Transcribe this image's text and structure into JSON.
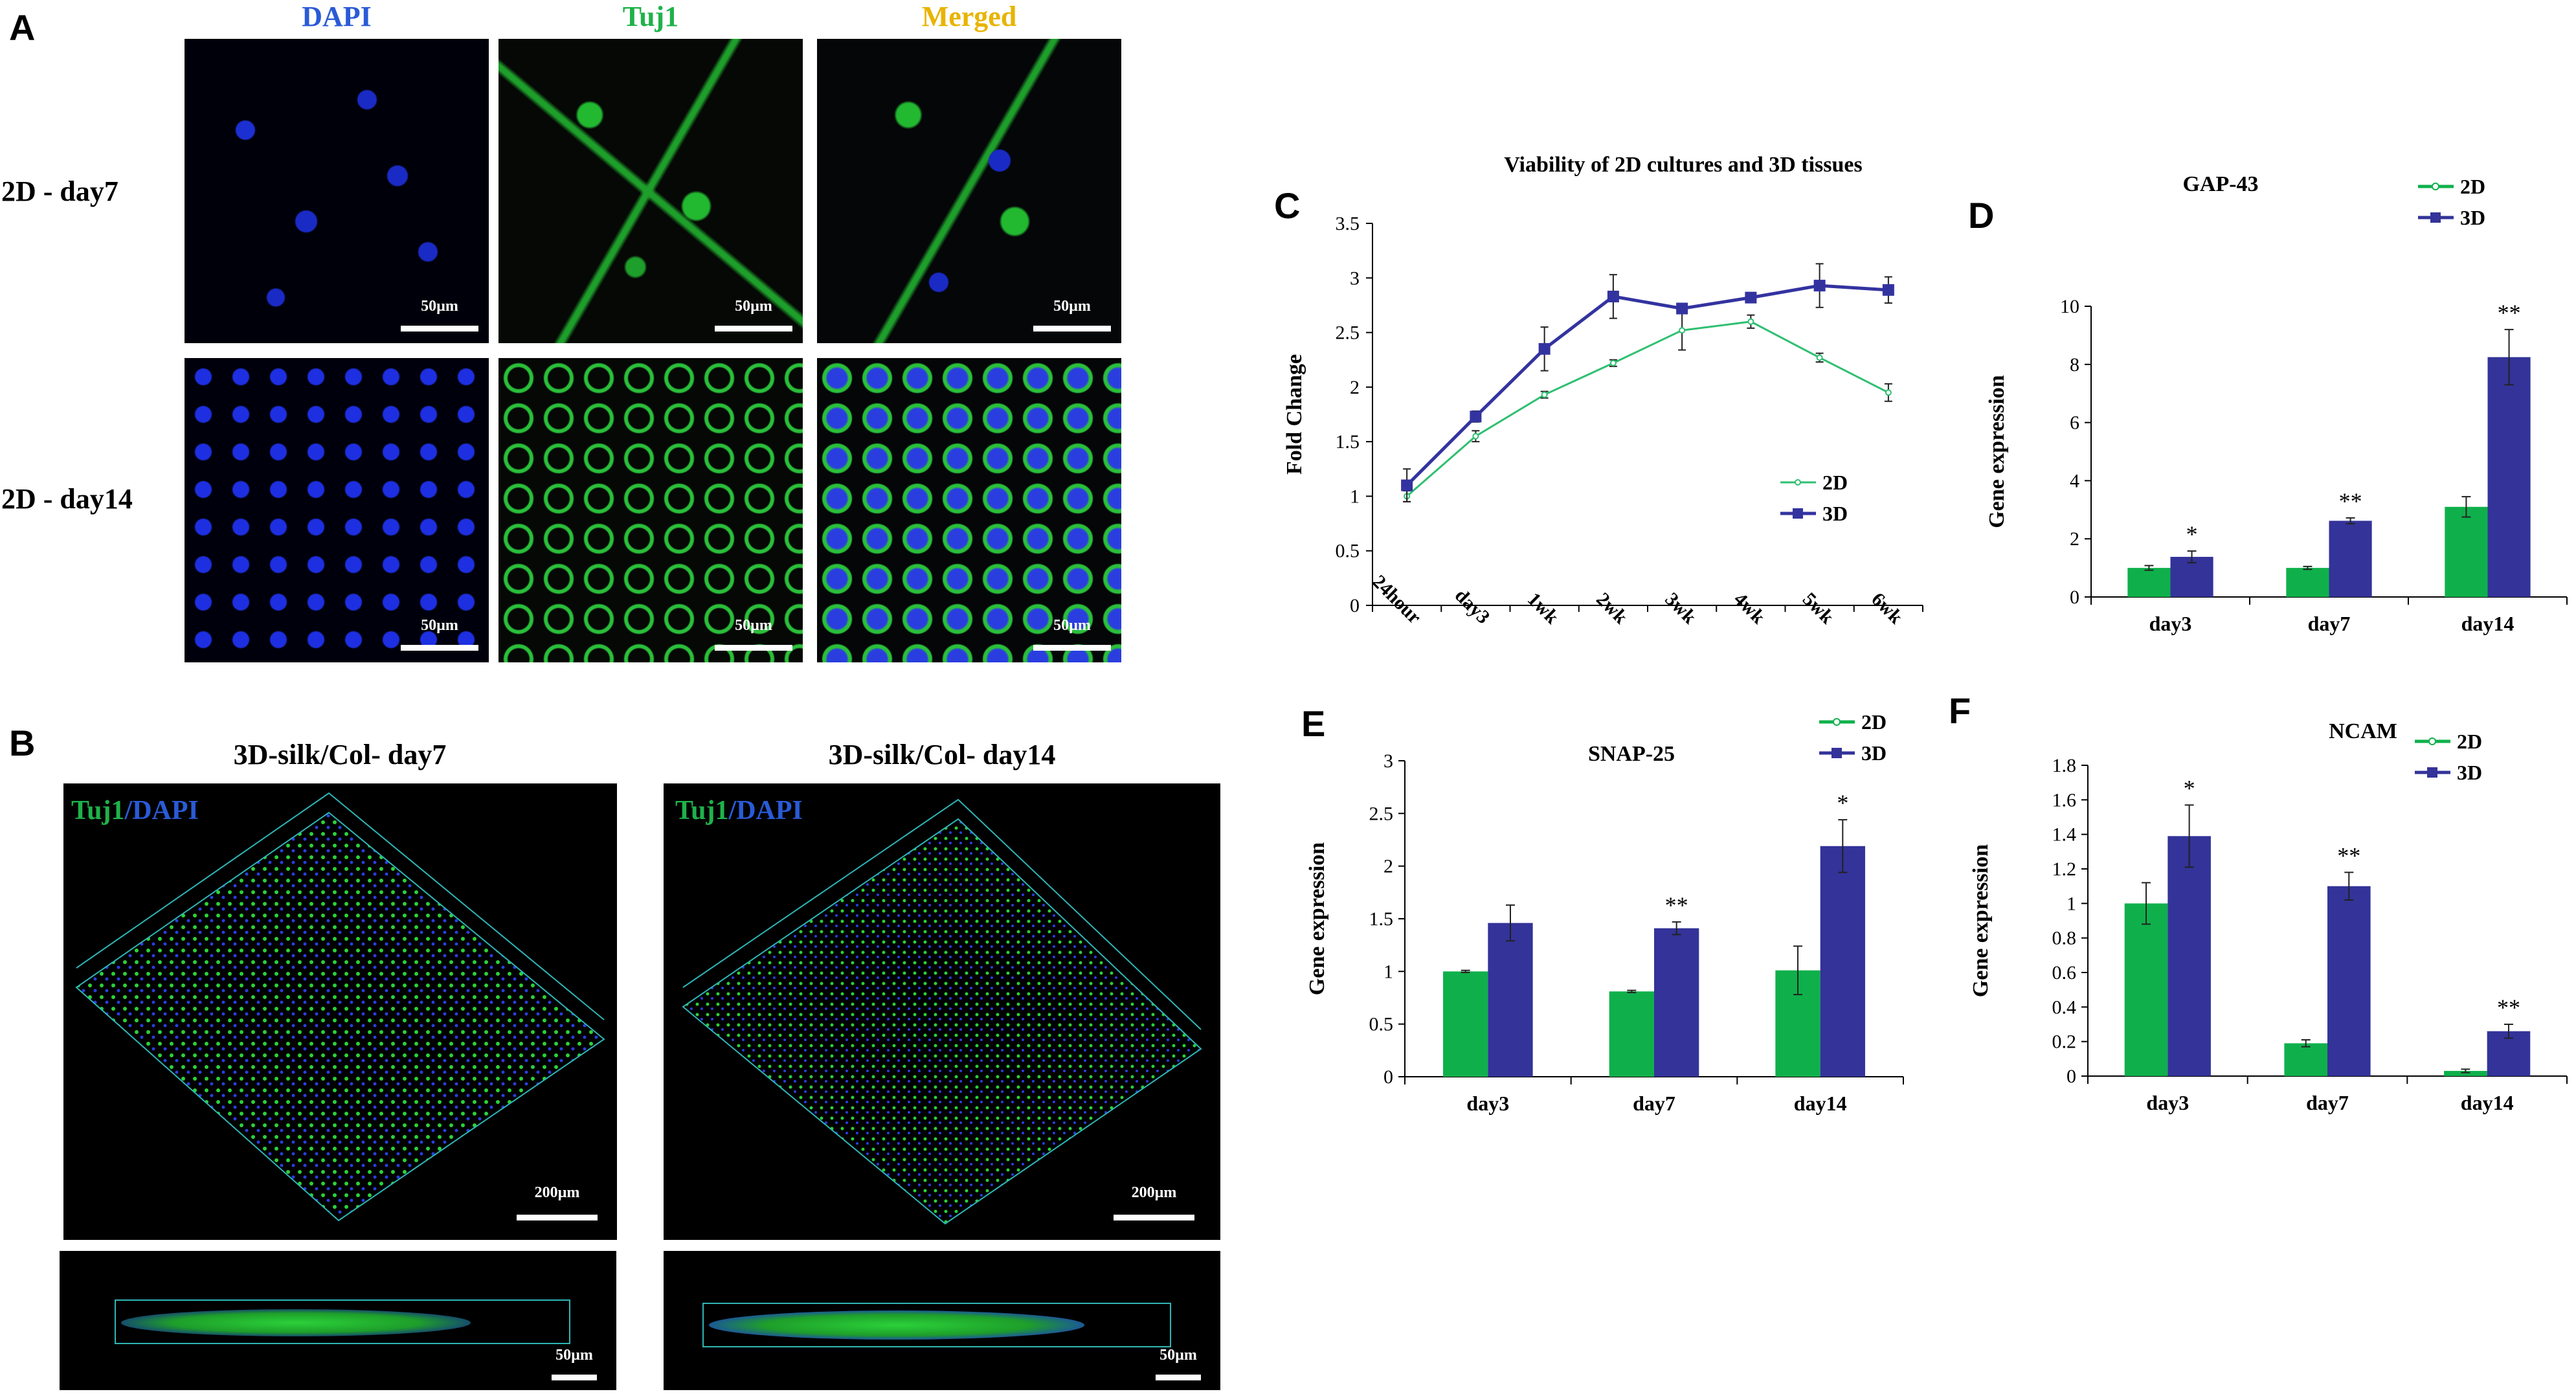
{
  "panelA": {
    "letter": "A",
    "headers": [
      "DAPI",
      "Tuj1",
      "Merged"
    ],
    "header_colors": [
      "#2a5bd6",
      "#1fb24a",
      "#e8b400"
    ],
    "rows": [
      "2D - day7",
      "2D - day14"
    ],
    "scale_label": "50µm"
  },
  "panelB": {
    "letter": "B",
    "titles": [
      "3D-silk/Col- day7",
      "3D-silk/Col- day14"
    ],
    "stain_tuj1": "Tuj1",
    "stain_sep": "/",
    "stain_dapi": "DAPI",
    "scale_big": "200µm",
    "scale_small": "50µm"
  },
  "chart_data": [
    {
      "id": "C",
      "type": "line",
      "letter": "C",
      "title": "Viability of 2D cultures and 3D tissues",
      "xlabel": "",
      "ylabel": "Fold Change",
      "categories": [
        "24hour",
        "day3",
        "1wk",
        "2wk",
        "3wk",
        "4wk",
        "5wk",
        "6wk"
      ],
      "ylim": [
        0,
        3.5
      ],
      "yticks": [
        0,
        0.5,
        1,
        1.5,
        2,
        2.5,
        3,
        3.5
      ],
      "series": [
        {
          "name": "2D",
          "color": "#2fbf71",
          "values": [
            1.0,
            1.55,
            1.93,
            2.22,
            2.52,
            2.6,
            2.27,
            1.95
          ],
          "errors": [
            0.05,
            0.05,
            0.03,
            0.03,
            0.18,
            0.06,
            0.04,
            0.08
          ]
        },
        {
          "name": "3D",
          "color": "#3333a0",
          "values": [
            1.1,
            1.73,
            2.35,
            2.83,
            2.72,
            2.82,
            2.93,
            2.89
          ],
          "errors": [
            0.15,
            0.05,
            0.2,
            0.2,
            0.04,
            0.03,
            0.2,
            0.12
          ]
        }
      ],
      "legend_position": "right"
    },
    {
      "id": "D",
      "type": "bar",
      "letter": "D",
      "title": "GAP-43",
      "ylabel": "Gene expression",
      "categories": [
        "day3",
        "day7",
        "day14"
      ],
      "ylim": [
        0,
        10
      ],
      "yticks": [
        0,
        2,
        4,
        6,
        8,
        10
      ],
      "series": [
        {
          "name": "2D",
          "color": "#0fb04b",
          "values": [
            1.0,
            1.0,
            3.1
          ],
          "errors": [
            0.08,
            0.05,
            0.35
          ]
        },
        {
          "name": "3D",
          "color": "#333399",
          "values": [
            1.38,
            2.62,
            8.25
          ],
          "errors": [
            0.2,
            0.1,
            0.95
          ]
        }
      ],
      "significance": [
        "*",
        "**",
        "**"
      ],
      "legend_position": "top-right"
    },
    {
      "id": "E",
      "type": "bar",
      "letter": "E",
      "title": "SNAP-25",
      "ylabel": "Gene expression",
      "categories": [
        "day3",
        "day7",
        "day14"
      ],
      "ylim": [
        0,
        3
      ],
      "yticks": [
        0,
        0.5,
        1,
        1.5,
        2,
        2.5,
        3
      ],
      "series": [
        {
          "name": "2D",
          "color": "#0fb04b",
          "values": [
            1.0,
            0.81,
            1.01
          ],
          "errors": [
            0.01,
            0.01,
            0.23
          ]
        },
        {
          "name": "3D",
          "color": "#333399",
          "values": [
            1.46,
            1.41,
            2.19
          ],
          "errors": [
            0.17,
            0.06,
            0.25
          ]
        }
      ],
      "significance": [
        "",
        "**",
        "*"
      ],
      "legend_position": "top-right"
    },
    {
      "id": "F",
      "type": "bar",
      "letter": "F",
      "title": "NCAM",
      "ylabel": "Gene expression",
      "categories": [
        "day3",
        "day7",
        "day14"
      ],
      "ylim": [
        0,
        1.8
      ],
      "yticks": [
        0,
        0.2,
        0.4,
        0.6,
        0.8,
        1,
        1.2,
        1.4,
        1.6,
        1.8
      ],
      "series": [
        {
          "name": "2D",
          "color": "#0fb04b",
          "values": [
            1.0,
            0.19,
            0.03
          ],
          "errors": [
            0.12,
            0.02,
            0.01
          ]
        },
        {
          "name": "3D",
          "color": "#333399",
          "values": [
            1.39,
            1.1,
            0.26
          ],
          "errors": [
            0.18,
            0.08,
            0.04
          ]
        }
      ],
      "significance": [
        "*",
        "**",
        "**"
      ],
      "legend_position": "top-right"
    }
  ]
}
